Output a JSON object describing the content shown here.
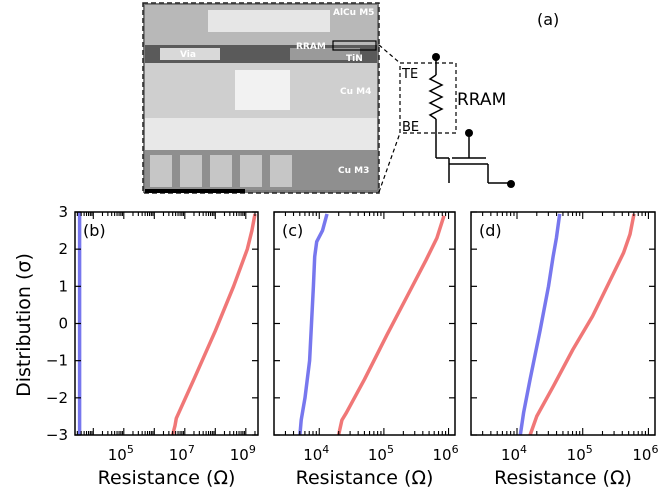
{
  "figure": {
    "label_a": "(a)",
    "sem_labels": {
      "alcu": "AlCu M5",
      "rram": "RRAM",
      "tin": "TiN",
      "via": "Via",
      "cu_m4": "Cu M4",
      "cu_m3": "Cu M3"
    },
    "circuit": {
      "te": "TE",
      "be": "BE",
      "title": "RRAM"
    }
  },
  "chart_data": [
    {
      "type": "line",
      "panel": "(b)",
      "xlabel": "Resistance (Ω)",
      "ylabel": "Distribution (σ)",
      "xscale": "log",
      "xlim_log10": [
        3.4,
        9.4
      ],
      "ylim": [
        -3,
        3
      ],
      "xticks": [
        {
          "exp": 5,
          "base": "10",
          "sup": "5"
        },
        {
          "exp": 7,
          "base": "10",
          "sup": "7"
        },
        {
          "exp": 9,
          "base": "10",
          "sup": "9"
        }
      ],
      "yticks": [
        "3",
        "2",
        "1",
        "0",
        "−1",
        "−2",
        "−3"
      ],
      "series": [
        {
          "color": "#7777ee",
          "points_log10": [
            [
              3.55,
              -3.0
            ],
            [
              3.55,
              -2.0
            ],
            [
              3.55,
              0.0
            ],
            [
              3.55,
              2.0
            ],
            [
              3.55,
              3.0
            ]
          ]
        },
        {
          "color": "#f07777",
          "points_log10": [
            [
              6.6,
              -3.0
            ],
            [
              6.68,
              -2.75
            ],
            [
              6.72,
              -2.55
            ],
            [
              7.3,
              -1.5
            ],
            [
              8.0,
              -0.2
            ],
            [
              8.6,
              1.0
            ],
            [
              9.05,
              2.0
            ],
            [
              9.2,
              2.5
            ],
            [
              9.3,
              2.95
            ]
          ]
        }
      ]
    },
    {
      "type": "line",
      "panel": "(c)",
      "xlabel": "Resistance (Ω)",
      "xscale": "log",
      "xlim_log10": [
        3.3,
        6.1
      ],
      "ylim": [
        -3,
        3
      ],
      "xticks": [
        {
          "exp": 4,
          "base": "10",
          "sup": "4"
        },
        {
          "exp": 5,
          "base": "10",
          "sup": "5"
        },
        {
          "exp": 6,
          "base": "10",
          "sup": "6"
        }
      ],
      "yticks": [],
      "series": [
        {
          "color": "#7777ee",
          "points_log10": [
            [
              3.7,
              -3.0
            ],
            [
              3.72,
              -2.6
            ],
            [
              3.78,
              -2.0
            ],
            [
              3.85,
              -1.0
            ],
            [
              3.88,
              0.0
            ],
            [
              3.91,
              1.0
            ],
            [
              3.93,
              1.8
            ],
            [
              3.96,
              2.2
            ],
            [
              4.05,
              2.5
            ],
            [
              4.12,
              2.95
            ]
          ]
        },
        {
          "color": "#f07777",
          "points_log10": [
            [
              4.3,
              -3.0
            ],
            [
              4.35,
              -2.6
            ],
            [
              4.42,
              -2.4
            ],
            [
              4.7,
              -1.5
            ],
            [
              5.05,
              -0.3
            ],
            [
              5.35,
              0.7
            ],
            [
              5.65,
              1.7
            ],
            [
              5.82,
              2.3
            ],
            [
              5.93,
              2.9
            ]
          ]
        }
      ]
    },
    {
      "type": "line",
      "panel": "(d)",
      "xlabel": "Resistance (Ω)",
      "xscale": "log",
      "xlim_log10": [
        3.3,
        6.1
      ],
      "ylim": [
        -3,
        3
      ],
      "xticks": [
        {
          "exp": 4,
          "base": "10",
          "sup": "4"
        },
        {
          "exp": 5,
          "base": "10",
          "sup": "5"
        },
        {
          "exp": 6,
          "base": "10",
          "sup": "6"
        }
      ],
      "yticks": [],
      "series": [
        {
          "color": "#7777ee",
          "points_log10": [
            [
              4.05,
              -3.0
            ],
            [
              4.1,
              -2.4
            ],
            [
              4.2,
              -1.5
            ],
            [
              4.35,
              -0.2
            ],
            [
              4.48,
              1.0
            ],
            [
              4.55,
              1.8
            ],
            [
              4.6,
              2.3
            ],
            [
              4.65,
              2.95
            ]
          ]
        },
        {
          "color": "#f07777",
          "points_log10": [
            [
              4.2,
              -3.0
            ],
            [
              4.3,
              -2.5
            ],
            [
              4.55,
              -1.7
            ],
            [
              4.85,
              -0.7
            ],
            [
              5.15,
              0.2
            ],
            [
              5.4,
              1.1
            ],
            [
              5.62,
              1.9
            ],
            [
              5.72,
              2.4
            ],
            [
              5.78,
              2.95
            ]
          ]
        }
      ]
    }
  ]
}
